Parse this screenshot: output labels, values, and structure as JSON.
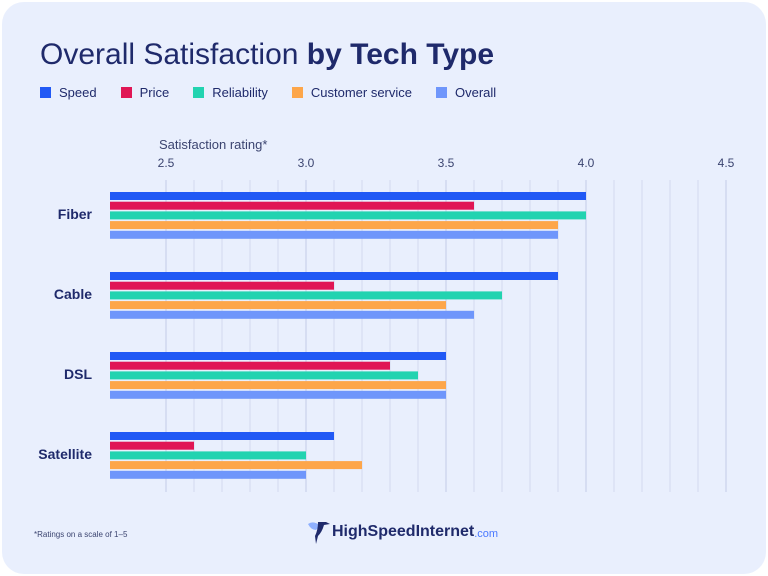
{
  "chart_data": {
    "type": "bar",
    "orientation": "horizontal",
    "title_regular": "Overall Satisfaction",
    "title_bold": "by Tech Type",
    "xlabel": "Satisfaction rating*",
    "xlim": [
      2.3,
      4.5
    ],
    "xticks": [
      "2.5",
      "3.0",
      "3.5",
      "4.0",
      "4.5"
    ],
    "grid": true,
    "legend_position": "top-left",
    "categories": [
      "Fiber",
      "Cable",
      "DSL",
      "Satellite"
    ],
    "series": [
      {
        "name": "Speed",
        "color": "#2159f5",
        "values": [
          4.0,
          3.9,
          3.5,
          3.1
        ]
      },
      {
        "name": "Price",
        "color": "#e01655",
        "values": [
          3.6,
          3.1,
          3.3,
          2.6
        ]
      },
      {
        "name": "Reliability",
        "color": "#22d3b0",
        "values": [
          4.0,
          3.7,
          3.4,
          3.0
        ]
      },
      {
        "name": "Customer service",
        "color": "#fda64a",
        "values": [
          3.9,
          3.5,
          3.5,
          3.2
        ]
      },
      {
        "name": "Overall",
        "color": "#6f96fb",
        "values": [
          3.9,
          3.6,
          3.5,
          3.0
        ]
      }
    ],
    "footnote": "*Ratings on a scale of 1–5"
  },
  "logo": {
    "name": "HighSpeedInternet",
    "suffix": ".com"
  }
}
